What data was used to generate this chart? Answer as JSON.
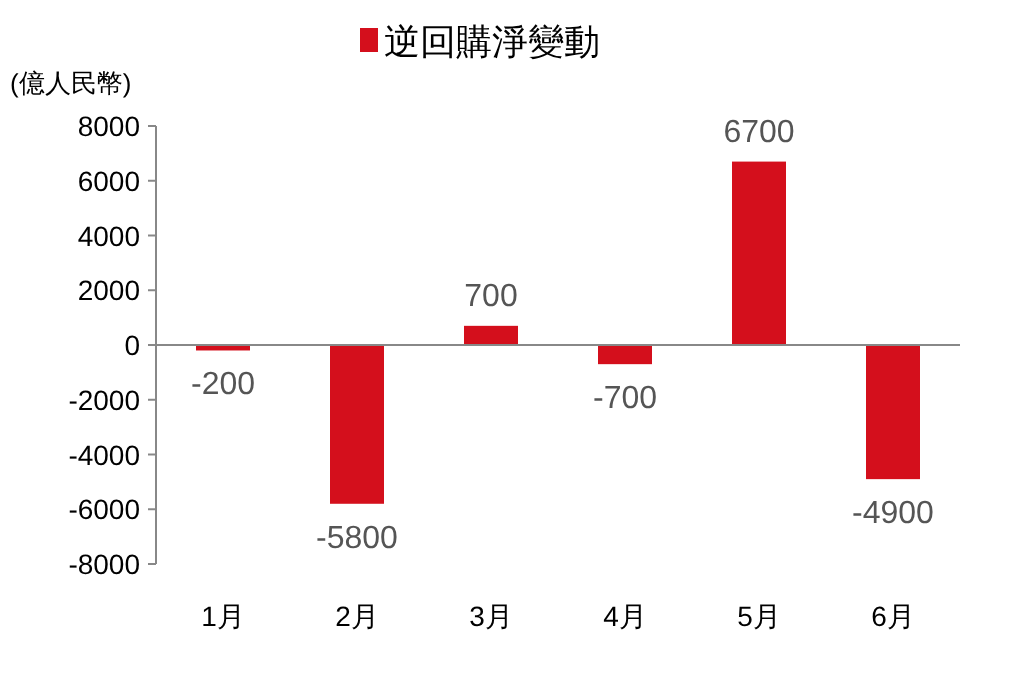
{
  "chart_data": {
    "type": "bar",
    "categories": [
      "1月",
      "2月",
      "3月",
      "4月",
      "5月",
      "6月"
    ],
    "series": [
      {
        "name": "逆回購淨變動",
        "color": "#d40f1c",
        "values": [
          -200,
          -5800,
          700,
          -700,
          6700,
          -4900
        ]
      }
    ],
    "ylabel": "(億人民幣)",
    "ylim": [
      -8000,
      8000
    ],
    "yticks": [
      -8000,
      -6000,
      -4000,
      -2000,
      0,
      2000,
      4000,
      6000,
      8000
    ],
    "data_labels": true,
    "legend": "top"
  }
}
